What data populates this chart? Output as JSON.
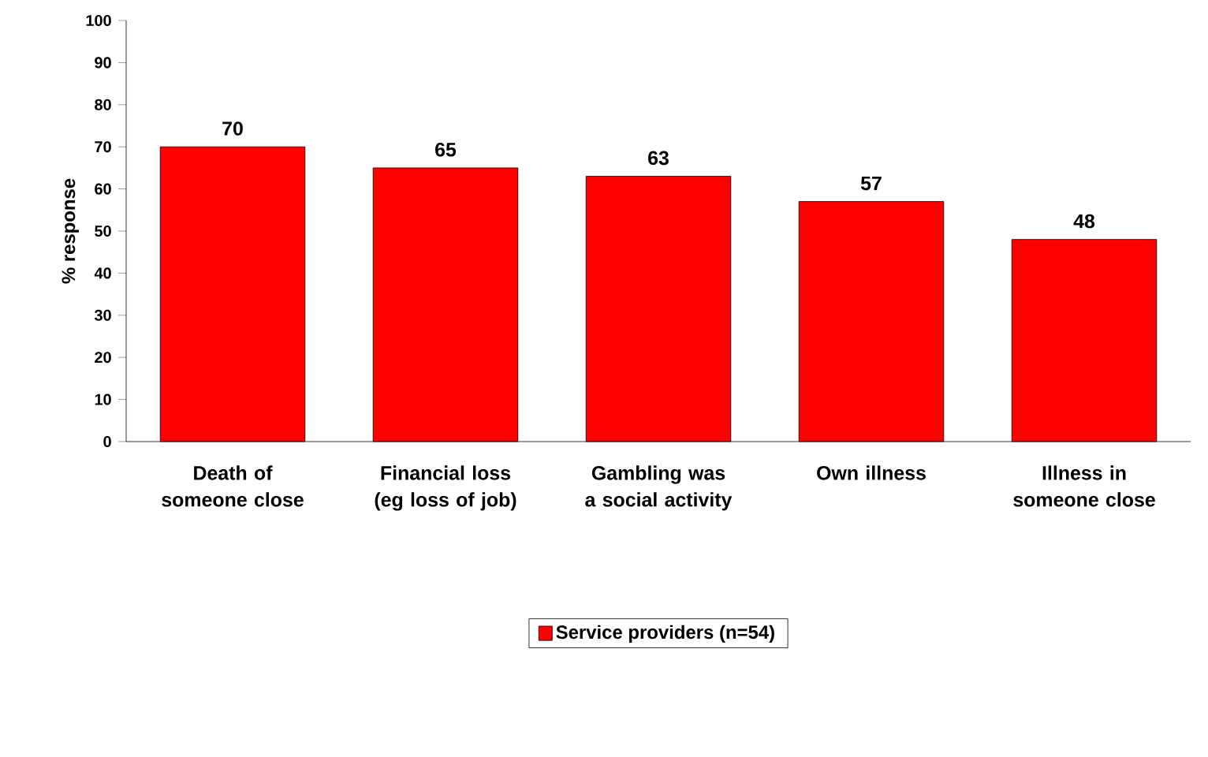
{
  "chart_data": {
    "type": "bar",
    "ylabel": "% response",
    "categories": [
      "Death of someone close",
      "Financial loss (eg loss of job)",
      "Gambling was a social activity",
      "Own illness",
      "Illness in someone close"
    ],
    "series": [
      {
        "name": "Service providers (n=54)",
        "color": "#ff0000",
        "values": [
          70,
          65,
          63,
          57,
          48
        ]
      }
    ],
    "ylim": [
      0,
      100
    ],
    "yticks": [
      0,
      10,
      20,
      30,
      40,
      50,
      60,
      70,
      80,
      90,
      100
    ],
    "data_labels": true,
    "legend": "bottom",
    "grid": false
  }
}
